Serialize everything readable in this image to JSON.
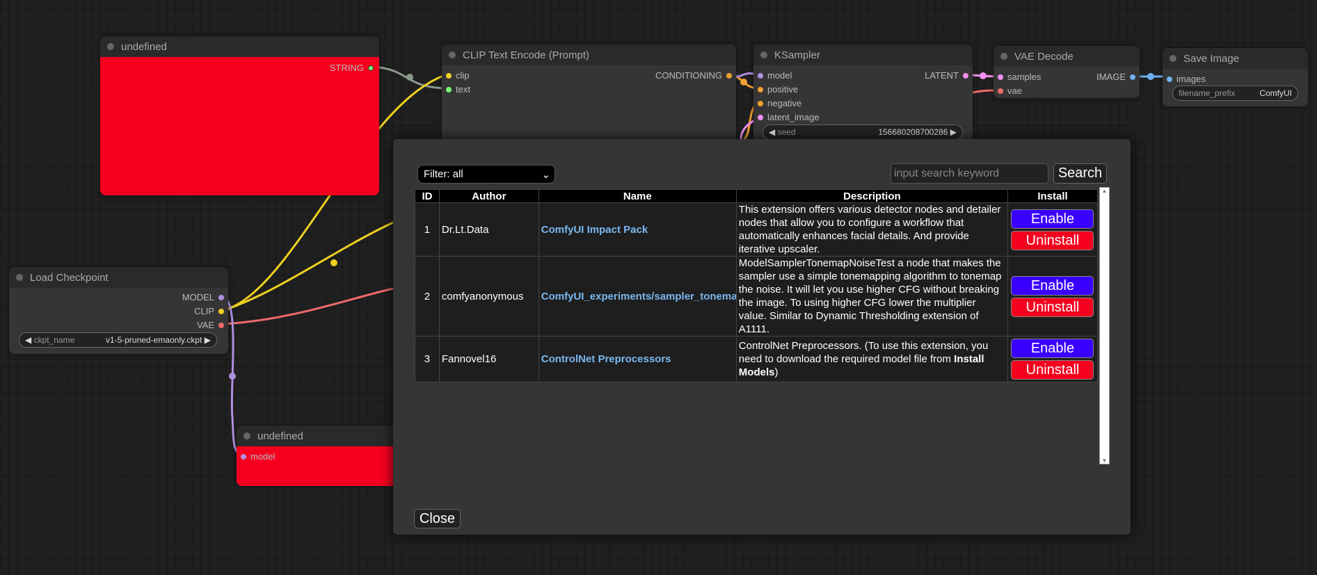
{
  "nodes": {
    "string_node": {
      "title": "undefined",
      "output": "STRING"
    },
    "clip_encode": {
      "title": "CLIP Text Encode (Prompt)",
      "inputs": [
        "clip",
        "text"
      ],
      "output": "CONDITIONING"
    },
    "ksampler": {
      "title": "KSampler",
      "inputs": [
        "model",
        "positive",
        "negative",
        "latent_image"
      ],
      "output": "LATENT",
      "seed_label": "seed",
      "seed_value": "156680208700286"
    },
    "vae_decode": {
      "title": "VAE Decode",
      "inputs": [
        "samples",
        "vae"
      ],
      "output": "IMAGE"
    },
    "save_image": {
      "title": "Save Image",
      "inputs": [
        "images"
      ],
      "prefix_label": "filename_prefix",
      "prefix_value": "ComfyUI"
    },
    "load_checkpoint": {
      "title": "Load Checkpoint",
      "outputs": [
        "MODEL",
        "CLIP",
        "VAE"
      ],
      "ckpt_label": "ckpt_name",
      "ckpt_value": "v1-5-pruned-emaonly.ckpt"
    },
    "model_node": {
      "title": "undefined",
      "input": "model"
    }
  },
  "modal": {
    "filter": "Filter: all",
    "search_placeholder": "input search keyword",
    "search_label": "Search",
    "columns": [
      "ID",
      "Author",
      "Name",
      "Description",
      "Install"
    ],
    "rows": [
      {
        "id": "1",
        "author": "Dr.Lt.Data",
        "name": "ComfyUI Impact Pack",
        "description": "This extension offers various detector nodes and detailer nodes that allow you to configure a workflow that automatically enhances facial details. And provide iterative upscaler.",
        "enable": "Enable",
        "uninstall": "Uninstall"
      },
      {
        "id": "2",
        "author": "comfyanonymous",
        "name": "ComfyUI_experiments/sampler_tonemap",
        "description": "ModelSamplerTonemapNoiseTest a node that makes the sampler use a simple tonemapping algorithm to tonemap the noise. It will let you use higher CFG without breaking the image. To using higher CFG lower the multiplier value. Similar to Dynamic Thresholding extension of A1111.",
        "enable": "Enable",
        "uninstall": "Uninstall"
      },
      {
        "id": "3",
        "author": "Fannovel16",
        "name": "ControlNet Preprocessors",
        "description": "ControlNet Preprocessors. (To use this extension, you need to download the required model file from ",
        "description_bold": "Install Models",
        "description_end": ")",
        "enable": "Enable",
        "uninstall": "Uninstall"
      }
    ],
    "close_label": "Close"
  },
  "colors": {
    "enable": "#3a00ff",
    "uninstall": "#f5001e",
    "node_error": "#f5001e"
  }
}
